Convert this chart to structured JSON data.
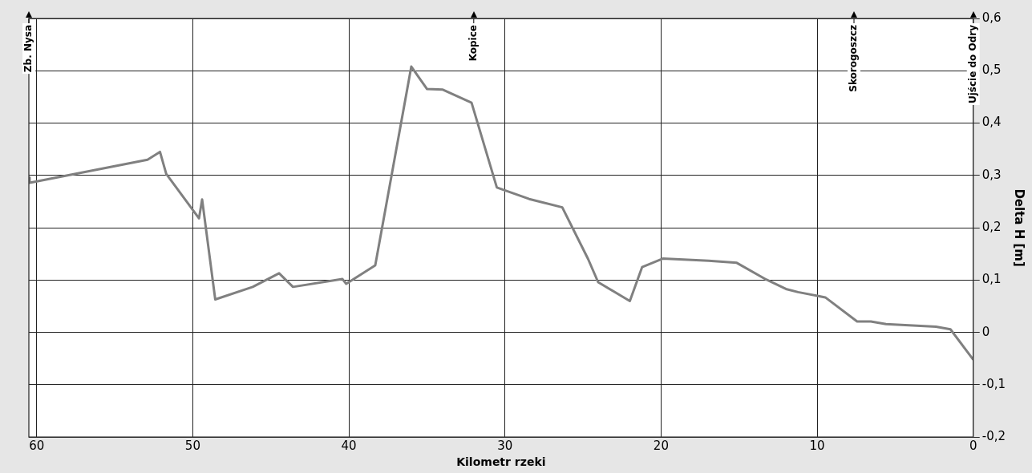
{
  "chart_data": {
    "type": "line",
    "xlabel": "Kilometr rzeki",
    "ylabel": "Delta H [m]",
    "x": [
      60.5,
      60.45,
      52.9,
      52.1,
      51.7,
      49.6,
      49.4,
      48.56,
      46.16,
      44.47,
      43.58,
      40.41,
      40.17,
      38.31,
      36.0,
      34.99,
      33.98,
      32.14,
      30.52,
      28.45,
      26.33,
      24.67,
      24.03,
      22.0,
      21.21,
      19.89,
      16.95,
      15.15,
      13.26,
      12.0,
      11.22,
      9.48,
      7.44,
      6.56,
      5.59,
      2.39,
      1.46,
      0
    ],
    "series": [
      {
        "color": "#808080",
        "values": [
          0.296,
          0.286,
          0.33,
          0.345,
          0.303,
          0.218,
          0.254,
          0.063,
          0.087,
          0.113,
          0.087,
          0.102,
          0.093,
          0.128,
          0.508,
          0.465,
          0.464,
          0.439,
          0.277,
          0.255,
          0.239,
          0.14,
          0.096,
          0.06,
          0.125,
          0.141,
          0.137,
          0.133,
          0.101,
          0.083,
          0.077,
          0.067,
          0.021,
          0.021,
          0.016,
          0.011,
          0.006,
          -0.052
        ]
      }
    ],
    "xlim": [
      60.5,
      0
    ],
    "xticks": [
      60,
      50,
      40,
      30,
      20,
      10,
      0
    ],
    "ylim": [
      -0.2,
      0.6
    ],
    "yticks": [
      {
        "value": -0.2,
        "label": "-0,2"
      },
      {
        "value": -0.1,
        "label": "-0,1"
      },
      {
        "value": 0,
        "label": "0"
      },
      {
        "value": 0.1,
        "label": "0,1"
      },
      {
        "value": 0.2,
        "label": "0,2"
      },
      {
        "value": 0.3,
        "label": "0,3"
      },
      {
        "value": 0.4,
        "label": "0,4"
      },
      {
        "value": 0.5,
        "label": "0,5"
      },
      {
        "value": 0.6,
        "label": "0,6"
      }
    ],
    "ref_lines": [
      {
        "axis": "x",
        "value": 60.5,
        "label": "Zb. Nysa"
      },
      {
        "axis": "x",
        "value": 32,
        "label": "Kopice"
      },
      {
        "axis": "x",
        "value": 7.64,
        "label": "Skorogoszcz"
      },
      {
        "axis": "x",
        "value": 0,
        "label": "Ujście do Odry"
      }
    ],
    "grid": true,
    "legend": false,
    "marker": "none",
    "line_style": "solid"
  }
}
